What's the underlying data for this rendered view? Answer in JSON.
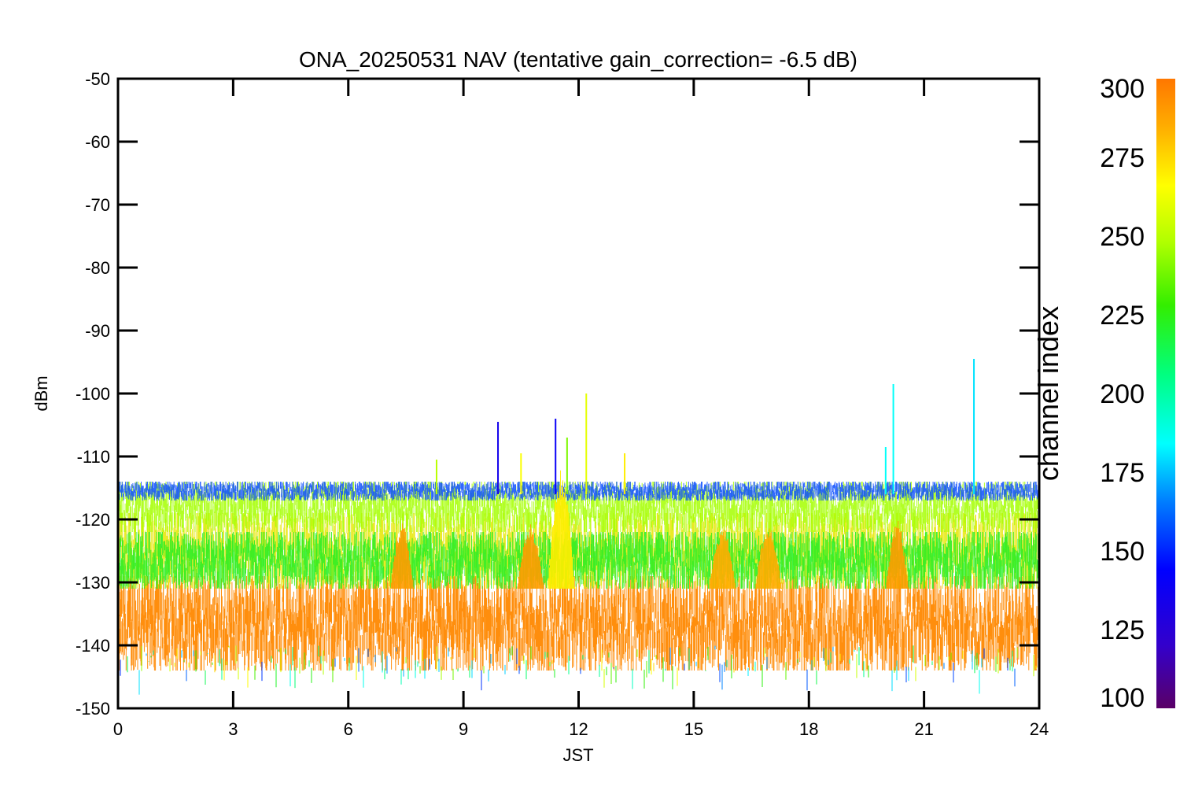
{
  "chart_data": {
    "type": "scatter",
    "title": "ONA_20250531 NAV (tentative gain_correction= -6.5 dB)",
    "xlabel": "JST",
    "ylabel": "dBm",
    "xlim": [
      0,
      24
    ],
    "ylim": [
      -150,
      -50
    ],
    "x_ticks": [
      0,
      3,
      6,
      9,
      12,
      15,
      18,
      21,
      24
    ],
    "y_ticks": [
      -50,
      -60,
      -70,
      -80,
      -90,
      -100,
      -110,
      -120,
      -130,
      -140,
      -150
    ],
    "grid": false,
    "colorbar": {
      "label": "channel index",
      "range": [
        100,
        300
      ],
      "ticks": [
        100,
        125,
        150,
        175,
        200,
        225,
        250,
        275,
        300
      ],
      "colormap": "rainbow",
      "colors": [
        "#5a0066",
        "#3300cc",
        "#0000ff",
        "#0080ff",
        "#00ffff",
        "#00ff80",
        "#33ee00",
        "#b0ff00",
        "#ffff00",
        "#ffb000",
        "#ff7700"
      ]
    },
    "bands": [
      {
        "channel_range": [
          280,
          300
        ],
        "dbm_center": -135,
        "dbm_min": -144,
        "dbm_max": -129,
        "color": "#ff8800"
      },
      {
        "channel_range": [
          255,
          275
        ],
        "dbm_center": -125,
        "dbm_min": -131,
        "dbm_max": -119,
        "color": "#e6e600"
      },
      {
        "channel_range": [
          230,
          250
        ],
        "dbm_center": -127,
        "dbm_min": -131,
        "dbm_max": -122,
        "color": "#22ee22"
      },
      {
        "channel_range": [
          260,
          270
        ],
        "dbm_center": -119,
        "dbm_min": -122,
        "dbm_max": -114,
        "color": "#a5ff00"
      },
      {
        "channel_range": [
          140,
          160
        ],
        "dbm_center": -116,
        "dbm_min": -117,
        "dbm_max": -114,
        "color": "#0a4dff"
      }
    ],
    "spikes": [
      {
        "x": 9.9,
        "y_top": -104.5,
        "channel": 135
      },
      {
        "x": 11.4,
        "y_top": -104,
        "channel": 140
      },
      {
        "x": 11.7,
        "y_top": -107,
        "channel": 240
      },
      {
        "x": 12.2,
        "y_top": -100,
        "channel": 260
      },
      {
        "x": 8.3,
        "y_top": -110.5,
        "channel": 250
      },
      {
        "x": 20.2,
        "y_top": -98.5,
        "channel": 185
      },
      {
        "x": 20.0,
        "y_top": -108.5,
        "channel": 185
      },
      {
        "x": 22.3,
        "y_top": -94.5,
        "channel": 180
      },
      {
        "x": 10.5,
        "y_top": -109.5,
        "channel": 265
      },
      {
        "x": 13.2,
        "y_top": -109.5,
        "channel": 270
      }
    ],
    "bumps": [
      {
        "x_start": 7.1,
        "x_end": 7.7,
        "y_top": -120,
        "channel": 290
      },
      {
        "x_start": 10.4,
        "x_end": 11.1,
        "y_top": -120.5,
        "channel": 290
      },
      {
        "x_start": 11.2,
        "x_end": 11.9,
        "y_top": -112,
        "channel": 270
      },
      {
        "x_start": 15.4,
        "x_end": 16.1,
        "y_top": -121,
        "channel": 285
      },
      {
        "x_start": 16.6,
        "x_end": 17.3,
        "y_top": -120.5,
        "channel": 285
      },
      {
        "x_start": 20.0,
        "x_end": 20.6,
        "y_top": -120,
        "channel": 290
      }
    ]
  }
}
